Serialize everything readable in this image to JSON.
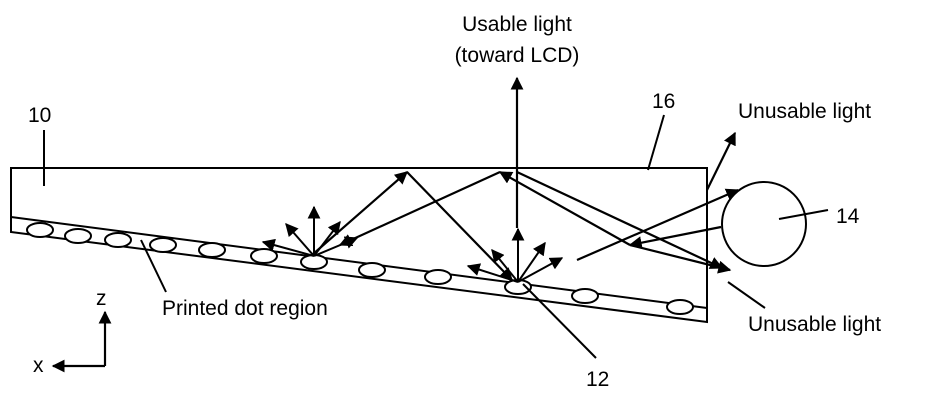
{
  "labels": {
    "usable_line1": "Usable light",
    "usable_line2": "(toward LCD)",
    "ref_10": "10",
    "ref_16": "16",
    "ref_14": "14",
    "ref_12": "12",
    "unusable_top": "Unusable light",
    "unusable_bottom": "Unusable light",
    "printed_dot_region": "Printed dot region",
    "axis_z": "z",
    "axis_x": "x"
  },
  "colors": {
    "stroke": "#000000",
    "background": "#ffffff"
  }
}
